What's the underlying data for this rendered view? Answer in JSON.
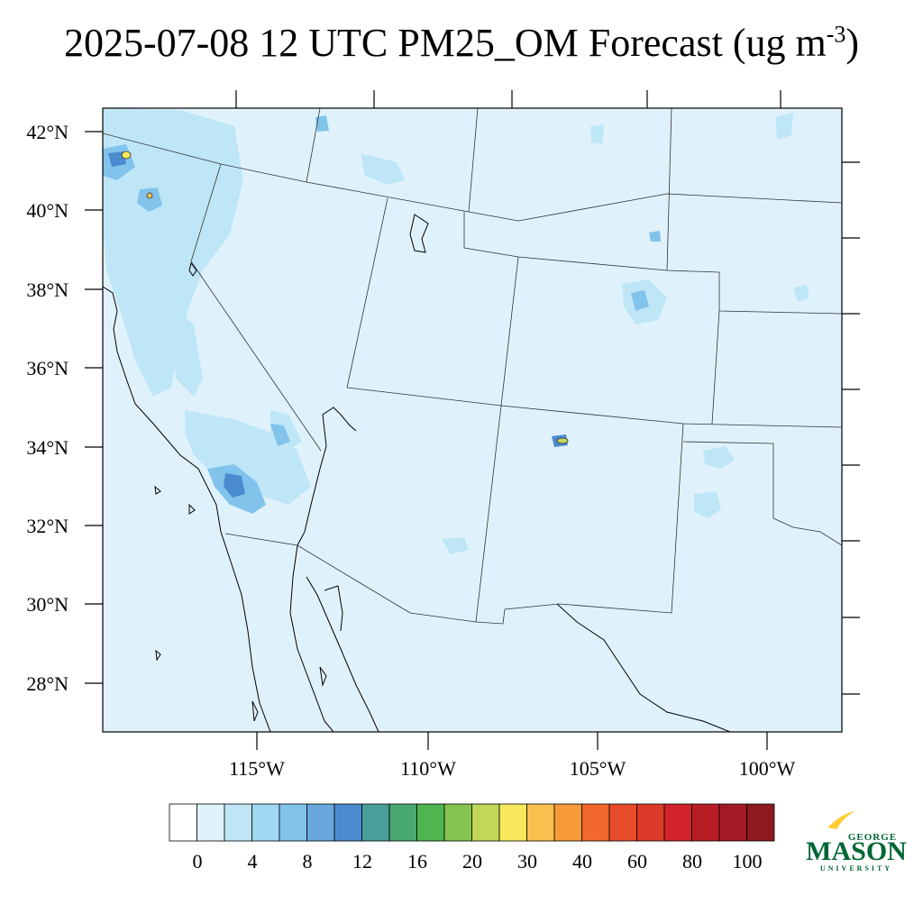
{
  "title": {
    "main": "2025-07-08 12 UTC PM25_OM Forecast (ug m",
    "sup": "-3",
    "tail": ")"
  },
  "map": {
    "background_color": "#dff2fb",
    "lat_labels": [
      "42°N",
      "40°N",
      "38°N",
      "36°N",
      "34°N",
      "32°N",
      "30°N",
      "28°N"
    ],
    "lon_labels": [
      "115°W",
      "110°W",
      "105°W",
      "100°W"
    ]
  },
  "colorbar": {
    "colors": [
      "#ffffff",
      "#e0f3fb",
      "#bfe6f7",
      "#a0d8f3",
      "#82c3ec",
      "#68a8dd",
      "#4a8bcf",
      "#4a9e9a",
      "#47a870",
      "#4db64e",
      "#86c451",
      "#c2d75a",
      "#f7e85c",
      "#f8c14d",
      "#f69a3a",
      "#f2682c",
      "#e74b2a",
      "#dc3a28",
      "#d2232a",
      "#b81d26",
      "#a21b24",
      "#8c1a1f"
    ],
    "labels": [
      "0",
      "4",
      "8",
      "12",
      "16",
      "20",
      "30",
      "40",
      "60",
      "80",
      "100"
    ]
  },
  "logo": {
    "top_text": "GEORGE",
    "main_text": "MASON",
    "bottom_text": "UNIVERSITY",
    "color_green": "#006633",
    "color_gold": "#ffcc33"
  }
}
